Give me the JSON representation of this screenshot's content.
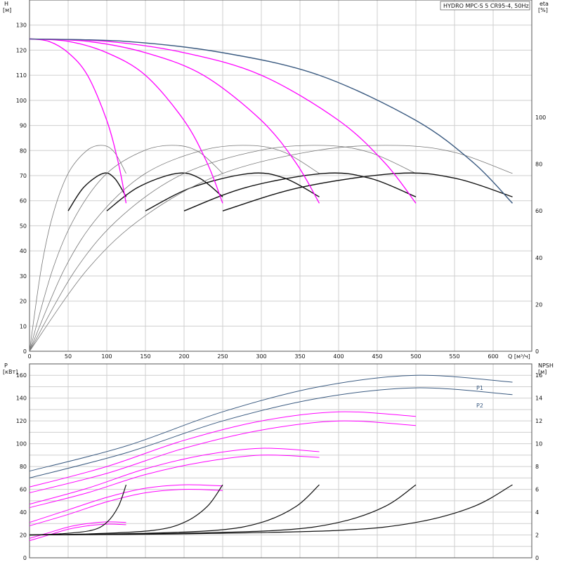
{
  "title": "HYDRO MPC-S 5 CR95-4, 50Hz",
  "colors": {
    "pump": "#ff00ff",
    "total": "#3a5a80",
    "black": "#111111",
    "gray": "#777777"
  },
  "chart_data": [
    {
      "type": "line",
      "name": "head",
      "ylabel_top": "H",
      "ylabel_unit": "[м]",
      "ylabel_right_top": "eta",
      "ylabel_right_unit": "[%]",
      "xlabel": "Q [м³/ч]",
      "xlim": [
        0,
        650
      ],
      "ylim": [
        0,
        140
      ],
      "eta_lim": [
        0,
        100
      ],
      "x_ticks": [
        0,
        50,
        100,
        150,
        200,
        250,
        300,
        350,
        400,
        450,
        500,
        550,
        600
      ],
      "y_ticks": [
        0,
        10,
        20,
        30,
        40,
        50,
        60,
        70,
        80,
        90,
        100,
        110,
        120,
        130
      ],
      "eta_ticks": [
        0,
        20,
        40,
        60,
        80,
        100
      ],
      "series": [
        {
          "color": "pump",
          "x": [
            0,
            25,
            50,
            75,
            100,
            115,
            125
          ],
          "y": [
            124.5,
            123.5,
            119,
            110,
            92,
            75,
            59
          ]
        },
        {
          "color": "pump",
          "x": [
            0,
            50,
            100,
            150,
            200,
            230,
            250
          ],
          "y": [
            124.5,
            123.5,
            119,
            110,
            92,
            75,
            59
          ]
        },
        {
          "color": "pump",
          "x": [
            0,
            75,
            150,
            225,
            300,
            345,
            375
          ],
          "y": [
            124.5,
            123.5,
            119,
            110,
            92,
            75,
            59
          ]
        },
        {
          "color": "pump",
          "x": [
            0,
            100,
            200,
            300,
            400,
            460,
            500
          ],
          "y": [
            124.5,
            123.5,
            119,
            110,
            92,
            75,
            59
          ]
        },
        {
          "color": "total",
          "x": [
            0,
            125,
            250,
            375,
            500,
            575,
            625
          ],
          "y": [
            124.5,
            123.5,
            119,
            110,
            92,
            75,
            59
          ]
        }
      ],
      "efficiency_series": [
        {
          "kind": "thin",
          "x": [
            0,
            15,
            30,
            50,
            75,
            95,
            110,
            125
          ],
          "y": [
            0,
            35,
            58,
            76,
            86,
            88,
            85,
            76
          ]
        },
        {
          "kind": "thick",
          "x": [
            50,
            70,
            95,
            110,
            125
          ],
          "y": [
            60,
            70,
            76,
            74,
            66
          ]
        },
        {
          "kind": "thin",
          "x": [
            0,
            30,
            60,
            100,
            150,
            190,
            220,
            250
          ],
          "y": [
            0,
            35,
            58,
            76,
            86,
            88,
            85,
            76
          ]
        },
        {
          "kind": "thick",
          "x": [
            100,
            140,
            190,
            220,
            250
          ],
          "y": [
            60,
            70,
            76,
            74,
            66
          ]
        },
        {
          "kind": "thin",
          "x": [
            0,
            45,
            90,
            150,
            225,
            285,
            330,
            375
          ],
          "y": [
            0,
            35,
            58,
            76,
            86,
            88,
            85,
            76
          ]
        },
        {
          "kind": "thick",
          "x": [
            150,
            210,
            285,
            330,
            375
          ],
          "y": [
            60,
            70,
            76,
            74,
            66
          ]
        },
        {
          "kind": "thin",
          "x": [
            0,
            60,
            120,
            200,
            300,
            380,
            440,
            500
          ],
          "y": [
            0,
            35,
            58,
            76,
            86,
            88,
            85,
            76
          ]
        },
        {
          "kind": "thick",
          "x": [
            200,
            280,
            380,
            440,
            500
          ],
          "y": [
            60,
            70,
            76,
            74,
            66
          ]
        },
        {
          "kind": "thin",
          "x": [
            0,
            75,
            150,
            250,
            375,
            475,
            550,
            625
          ],
          "y": [
            0,
            35,
            58,
            76,
            86,
            88,
            85,
            76
          ]
        },
        {
          "kind": "thick",
          "x": [
            250,
            350,
            475,
            550,
            625
          ],
          "y": [
            60,
            70,
            76,
            74,
            66
          ]
        }
      ]
    },
    {
      "type": "line",
      "name": "power",
      "ylabel_top": "P",
      "ylabel_unit": "[кВт]",
      "ylabel_right_top": "NPSH",
      "ylabel_right_unit": "[м]",
      "xlim": [
        0,
        650
      ],
      "ylim": [
        0,
        170
      ],
      "npsh_lim": [
        0,
        17
      ],
      "y_ticks": [
        0,
        20,
        40,
        60,
        80,
        100,
        120,
        140,
        160
      ],
      "npsh_ticks": [
        0,
        2,
        4,
        6,
        8,
        10,
        12,
        14,
        16
      ],
      "series_labels": [
        "P1",
        "P2"
      ],
      "series": [
        {
          "color": "pump",
          "x": [
            0,
            25,
            50,
            75,
            100,
            125
          ],
          "y": [
            17,
            22,
            27,
            30,
            31.5,
            31
          ]
        },
        {
          "color": "pump",
          "x": [
            0,
            25,
            50,
            75,
            100,
            125
          ],
          "y": [
            15,
            20,
            25,
            28,
            29.5,
            29
          ]
        },
        {
          "color": "pump",
          "x": [
            0,
            50,
            100,
            150,
            200,
            250
          ],
          "y": [
            31,
            42,
            53,
            61,
            64,
            63
          ]
        },
        {
          "color": "pump",
          "x": [
            0,
            50,
            100,
            150,
            200,
            250
          ],
          "y": [
            28,
            38,
            49,
            57,
            60,
            59
          ]
        },
        {
          "color": "pump",
          "x": [
            0,
            75,
            150,
            225,
            300,
            375
          ],
          "y": [
            47,
            61,
            78,
            90,
            96,
            93
          ]
        },
        {
          "color": "pump",
          "x": [
            0,
            75,
            150,
            225,
            300,
            375
          ],
          "y": [
            44,
            57,
            73,
            84,
            90,
            88
          ]
        },
        {
          "color": "pump",
          "x": [
            0,
            100,
            200,
            300,
            400,
            500
          ],
          "y": [
            62,
            80,
            103,
            120,
            128,
            124
          ]
        },
        {
          "color": "pump",
          "x": [
            0,
            100,
            200,
            300,
            400,
            500
          ],
          "y": [
            57,
            74,
            96,
            112,
            120,
            116
          ]
        },
        {
          "color": "total",
          "x": [
            0,
            125,
            250,
            375,
            500,
            625
          ],
          "y": [
            76,
            98,
            128,
            150,
            160,
            154
          ]
        },
        {
          "color": "total",
          "x": [
            0,
            125,
            250,
            375,
            500,
            625
          ],
          "y": [
            70,
            92,
            120,
            140,
            149,
            143
          ]
        }
      ],
      "npsh_series": [
        {
          "x": [
            0,
            40,
            80,
            100,
            115,
            125
          ],
          "y": [
            2,
            2.1,
            2.4,
            3.1,
            4.5,
            6.4
          ]
        },
        {
          "x": [
            0,
            80,
            160,
            200,
            230,
            250
          ],
          "y": [
            2,
            2.1,
            2.4,
            3.1,
            4.5,
            6.4
          ]
        },
        {
          "x": [
            0,
            120,
            240,
            300,
            345,
            375
          ],
          "y": [
            2,
            2.1,
            2.4,
            3.1,
            4.5,
            6.4
          ]
        },
        {
          "x": [
            0,
            160,
            320,
            400,
            460,
            500
          ],
          "y": [
            2,
            2.1,
            2.4,
            3.1,
            4.5,
            6.4
          ]
        },
        {
          "x": [
            0,
            200,
            400,
            500,
            575,
            625
          ],
          "y": [
            2,
            2.1,
            2.4,
            3.1,
            4.5,
            6.4
          ]
        }
      ]
    }
  ]
}
